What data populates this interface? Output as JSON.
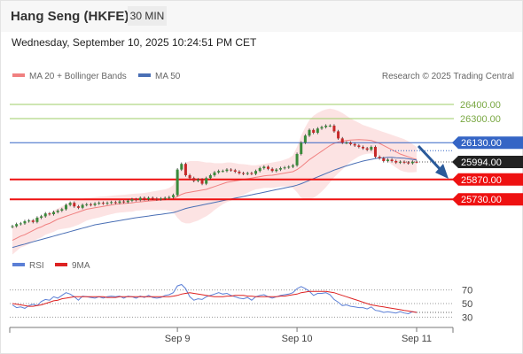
{
  "header": {
    "title": "Hang Seng (HKFE)",
    "timeframe": "30 MIN",
    "timestamp": "Wednesday, September 10, 2025 10:24:51 PM CET",
    "credit": "Research © 2025 Trading Central"
  },
  "colors": {
    "up_candle": "#3a8a3a",
    "down_candle": "#c62828",
    "bollinger": "#f08080",
    "ma50": "#4a6fb5",
    "pivot_line": "#3565c5",
    "support_line": "#ee1111",
    "target_line": "#9ccc65",
    "rsi": "#5b7fd6",
    "rsi_ma": "#dd2222",
    "arrow": "#2a5a9a"
  },
  "chart_data": [
    {
      "type": "candlestick",
      "title": "Hang Seng (HKFE)",
      "legend_placement": "top-left",
      "legend": [
        "MA 20 + Bollinger Bands",
        "MA 50"
      ],
      "xlabels": [
        "Sep 9",
        "Sep 10",
        "Sep 11"
      ],
      "ylim": [
        25450,
        26500
      ],
      "levels": [
        {
          "value": 26400,
          "label": "26400.00",
          "role": "target"
        },
        {
          "value": 26300,
          "label": "26300.00",
          "role": "target"
        },
        {
          "value": 26130,
          "label": "26130.00",
          "role": "pivot"
        },
        {
          "value": 25994,
          "label": "25994.00",
          "role": "last_price"
        },
        {
          "value": 25870,
          "label": "25870.00",
          "role": "support"
        },
        {
          "value": 25730,
          "label": "25730.00",
          "role": "support"
        }
      ],
      "trend_arrow": "down",
      "close": [
        25540,
        25555,
        25560,
        25575,
        25580,
        25570,
        25600,
        25610,
        25630,
        25625,
        25640,
        25650,
        25660,
        25690,
        25705,
        25680,
        25670,
        25690,
        25695,
        25690,
        25700,
        25705,
        25700,
        25705,
        25710,
        25705,
        25715,
        25710,
        25720,
        25730,
        25725,
        25740,
        25730,
        25740,
        25735,
        25730,
        25735,
        25740,
        25745,
        25760,
        25940,
        25980,
        25900,
        25880,
        25860,
        25870,
        25840,
        25880,
        25900,
        25920,
        25930,
        25930,
        25940,
        25935,
        25925,
        25915,
        25910,
        25915,
        25910,
        25930,
        25950,
        25960,
        25945,
        25930,
        25940,
        25950,
        25955,
        25960,
        25970,
        26050,
        26130,
        26180,
        26220,
        26200,
        26230,
        26240,
        26250,
        26250,
        26210,
        26160,
        26130,
        26130,
        26120,
        26110,
        26100,
        26090,
        26080,
        26100,
        26030,
        26020,
        26000,
        26010,
        26000,
        25990,
        25995,
        25990,
        25985,
        25995,
        25994
      ],
      "ma20": [
        25440,
        25455,
        25470,
        25480,
        25495,
        25510,
        25525,
        25535,
        25550,
        25560,
        25575,
        25590,
        25600,
        25610,
        25620,
        25630,
        25640,
        25650,
        25660,
        25665,
        25670,
        25675,
        25680,
        25685,
        25690,
        25695,
        25698,
        25700,
        25703,
        25705,
        25710,
        25712,
        25715,
        25718,
        25720,
        25722,
        25725,
        25727,
        25730,
        25735,
        25750,
        25765,
        25775,
        25780,
        25785,
        25790,
        25795,
        25800,
        25810,
        25820,
        25830,
        25840,
        25850,
        25855,
        25860,
        25865,
        25870,
        25875,
        25880,
        25885,
        25890,
        25895,
        25898,
        25900,
        25905,
        25910,
        25915,
        25920,
        25925,
        25940,
        25960,
        25985,
        26010,
        26030,
        26050,
        26070,
        26090,
        26110,
        26125,
        26135,
        26140,
        26145,
        26148,
        26150,
        26152,
        26150,
        26148,
        26145,
        26135,
        26125,
        26110,
        26095,
        26080,
        26065,
        26050,
        26040,
        26030,
        26020,
        26012
      ],
      "ma20_upper": [
        25540,
        25545,
        25550,
        25560,
        25575,
        25590,
        25600,
        25610,
        25620,
        25630,
        25650,
        25665,
        25680,
        25695,
        25710,
        25720,
        25730,
        25735,
        25740,
        25742,
        25745,
        25748,
        25750,
        25752,
        25755,
        25758,
        25760,
        25762,
        25765,
        25768,
        25770,
        25772,
        25775,
        25780,
        25785,
        25790,
        25795,
        25800,
        25810,
        25830,
        25900,
        25960,
        25990,
        26000,
        26000,
        26000,
        25995,
        25990,
        25990,
        25985,
        25985,
        25985,
        25990,
        25990,
        25985,
        25980,
        25978,
        25975,
        25970,
        25970,
        25975,
        25980,
        25985,
        25990,
        25995,
        26000,
        26010,
        26020,
        26040,
        26100,
        26180,
        26240,
        26290,
        26320,
        26340,
        26355,
        26365,
        26370,
        26365,
        26355,
        26340,
        26320,
        26300,
        26285,
        26270,
        26255,
        26245,
        26235,
        26225,
        26215,
        26205,
        26195,
        26185,
        26175,
        26165,
        26155,
        26140,
        26120,
        26100
      ],
      "ma20_lower": [
        25340,
        25365,
        25390,
        25400,
        25415,
        25430,
        25450,
        25460,
        25480,
        25490,
        25500,
        25515,
        25520,
        25525,
        25530,
        25540,
        25550,
        25565,
        25580,
        25588,
        25595,
        25602,
        25610,
        25618,
        25625,
        25632,
        25636,
        25638,
        25641,
        25642,
        25650,
        25652,
        25655,
        25656,
        25655,
        25654,
        25655,
        25654,
        25650,
        25640,
        25600,
        25570,
        25560,
        25560,
        25570,
        25580,
        25595,
        25610,
        25630,
        25655,
        25675,
        25695,
        25710,
        25720,
        25735,
        25750,
        25762,
        25775,
        25790,
        25800,
        25805,
        25810,
        25811,
        25810,
        25815,
        25820,
        25820,
        25820,
        25810,
        25780,
        25740,
        25730,
        25730,
        25740,
        25760,
        25785,
        25815,
        25850,
        25885,
        25915,
        25940,
        25970,
        25996,
        26015,
        26034,
        26045,
        26051,
        26055,
        26045,
        26035,
        26015,
        25995,
        25975,
        25955,
        25935,
        25925,
        25920,
        25920,
        25924
      ],
      "ma50": [
        25390,
        25398,
        25406,
        25414,
        25422,
        25430,
        25438,
        25446,
        25454,
        25462,
        25470,
        25478,
        25486,
        25494,
        25502,
        25510,
        25518,
        25526,
        25534,
        25542,
        25550,
        25555,
        25560,
        25565,
        25570,
        25575,
        25580,
        25585,
        25590,
        25595,
        25600,
        25604,
        25608,
        25612,
        25616,
        25620,
        25624,
        25628,
        25632,
        25636,
        25645,
        25655,
        25665,
        25672,
        25678,
        25684,
        25690,
        25696,
        25702,
        25708,
        25714,
        25720,
        25726,
        25732,
        25738,
        25744,
        25750,
        25756,
        25762,
        25768,
        25774,
        25780,
        25786,
        25792,
        25798,
        25804,
        25810,
        25816,
        25822,
        25830,
        25840,
        25852,
        25864,
        25876,
        25888,
        25900,
        25912,
        25924,
        25936,
        25946,
        25956,
        25966,
        25975,
        25984,
        25992,
        26000,
        26006,
        26012,
        26018,
        26022,
        26024,
        26026,
        26026,
        26024,
        26022,
        26020,
        26016,
        26012,
        26008
      ]
    },
    {
      "type": "line",
      "title": "RSI",
      "legend_placement": "top-left",
      "legend": [
        "RSI",
        "9MA"
      ],
      "ylim": [
        20,
        80
      ],
      "yticks": [
        70,
        50,
        30
      ],
      "series": [
        {
          "name": "RSI",
          "values": [
            48,
            44,
            45,
            43,
            47,
            49,
            47,
            53,
            56,
            55,
            60,
            58,
            62,
            66,
            64,
            60,
            55,
            61,
            60,
            59,
            58,
            60,
            58,
            60,
            61,
            60,
            61,
            58,
            61,
            60,
            58,
            61,
            59,
            62,
            59,
            58,
            59,
            62,
            63,
            66,
            76,
            78,
            72,
            60,
            55,
            57,
            56,
            60,
            62,
            64,
            66,
            64,
            65,
            62,
            60,
            58,
            57,
            59,
            55,
            60,
            62,
            63,
            60,
            58,
            60,
            62,
            63,
            64,
            66,
            72,
            75,
            72,
            68,
            62,
            65,
            65,
            66,
            63,
            56,
            52,
            47,
            48,
            46,
            45,
            44,
            44,
            42,
            45,
            40,
            39,
            37,
            38,
            37,
            36,
            38,
            36,
            35,
            38,
            37
          ]
        },
        {
          "name": "9MA",
          "values": [
            50,
            49,
            48,
            47,
            46,
            46,
            47,
            48,
            50,
            52,
            54,
            55,
            57,
            58,
            59,
            60,
            60,
            60,
            60,
            60,
            60,
            60,
            60,
            59,
            59,
            59,
            60,
            60,
            60,
            60,
            60,
            60,
            60,
            60,
            60,
            60,
            60,
            60,
            60,
            61,
            62,
            64,
            65,
            66,
            65,
            64,
            63,
            62,
            61,
            60,
            60,
            60,
            61,
            61,
            62,
            62,
            62,
            61,
            61,
            60,
            60,
            60,
            60,
            60,
            60,
            61,
            61,
            62,
            63,
            64,
            66,
            67,
            68,
            68,
            68,
            68,
            68,
            67,
            66,
            64,
            62,
            60,
            58,
            56,
            54,
            52,
            50,
            48,
            47,
            46,
            45,
            44,
            43,
            42,
            41,
            40,
            39,
            38,
            37
          ]
        }
      ]
    }
  ]
}
